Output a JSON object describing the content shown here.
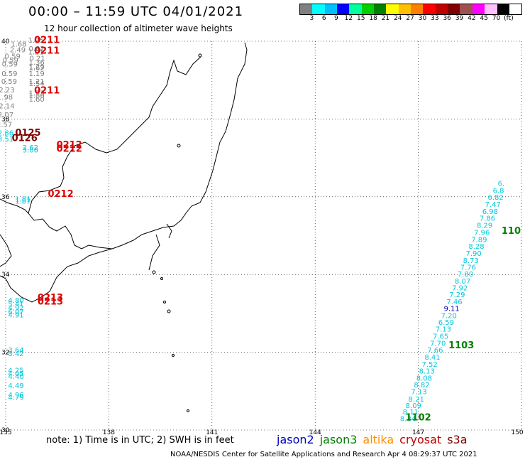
{
  "title": "00:00 – 11:59 UTC 04/01/2021",
  "subtitle": "12 hour collection of altimeter wave heights",
  "scale": {
    "colors": [
      "#808080",
      "#00ffff",
      "#00bfff",
      "#0000ff",
      "#00ffa0",
      "#00d000",
      "#008000",
      "#ffff00",
      "#ffc000",
      "#ff8000",
      "#ff0000",
      "#c00000",
      "#800000",
      "#a05050",
      "#ff00ff",
      "#ffc0ff",
      "#000000",
      "#ffffff"
    ],
    "labels": [
      "3",
      "6",
      "9",
      "12",
      "15",
      "18",
      "21",
      "24",
      "27",
      "30",
      "33",
      "36",
      "39",
      "42",
      "45",
      "70",
      "(ft)"
    ]
  },
  "chart_data": {
    "type": "scatter",
    "title": "00:00 – 11:59 UTC 04/01/2021",
    "subtitle": "12 hour collection of altimeter wave heights",
    "xlim": [
      135,
      150
    ],
    "ylim": [
      30,
      40
    ],
    "x_ticks": [
      "135",
      "138",
      "141",
      "144",
      "147",
      "150"
    ],
    "y_ticks": [
      "30",
      "32",
      "34",
      "36",
      "38",
      "40"
    ],
    "grid": true,
    "series": [
      {
        "name": "jason3 pass 1103",
        "color": "#00c8dc",
        "labels": [
          "8.34",
          "8.11",
          "8.09",
          "8.21",
          "7.13",
          "8.82",
          "8.08",
          "8.13",
          "7.52",
          "8.41",
          "7.66",
          "7.70",
          "7.65",
          "7.13",
          "6.59",
          "7.20",
          "9.11",
          "7.46",
          "7.29",
          "7.92",
          "8.07",
          "7.80",
          "7.76",
          "8.73",
          "7.90",
          "8.28",
          "7.89",
          "7.96",
          "8.29",
          "7.86",
          "6.98",
          "7.47",
          "6.82",
          "6.8",
          "6."
        ],
        "x": [
          146.7,
          146.78,
          146.86,
          146.94,
          147.02,
          147.1,
          147.17,
          147.25,
          147.33,
          147.41,
          147.49,
          147.57,
          147.65,
          147.73,
          147.81,
          147.89,
          147.97,
          148.05,
          148.13,
          148.21,
          148.29,
          148.37,
          148.45,
          148.53,
          148.61,
          148.69,
          148.77,
          148.85,
          148.93,
          149.01,
          149.09,
          149.17,
          149.25,
          149.33,
          149.41
        ],
        "y": [
          30.23,
          30.4,
          30.57,
          30.73,
          30.92,
          31.1,
          31.27,
          31.45,
          31.63,
          31.81,
          31.99,
          32.17,
          32.35,
          32.53,
          32.71,
          32.88,
          33.06,
          33.24,
          33.42,
          33.59,
          33.77,
          33.95,
          34.12,
          34.3,
          34.48,
          34.66,
          34.84,
          35.02,
          35.2,
          35.38,
          35.56,
          35.74,
          35.92,
          36.1,
          36.28
        ]
      },
      {
        "name": "cryosat west",
        "color": "#808080",
        "labels": [
          "1.25",
          "1.68",
          "2.49",
          "0.82",
          "1.21",
          "0.59",
          "0.21",
          "0.59",
          "1.36",
          "0.59",
          "1.29",
          "1.62",
          "0.59",
          "1.19",
          "0.59",
          "1.21",
          "1.54",
          "2.23",
          "1.73",
          "1.86",
          "1.98",
          "1.60",
          "2.14",
          "2.07",
          "2.57"
        ],
        "x": [
          135.88,
          135.38,
          135.35,
          135.9,
          135.88,
          135.2,
          135.92,
          135.14,
          135.9,
          135.12,
          135.9,
          135.9,
          135.11,
          135.9,
          135.1,
          135.9,
          135.9,
          135.03,
          135.9,
          135.9,
          134.98,
          135.9,
          135.03,
          135.0,
          134.96
        ],
        "y": [
          39.96,
          39.86,
          39.72,
          39.74,
          39.66,
          39.55,
          39.5,
          39.45,
          39.4,
          39.35,
          39.28,
          39.25,
          39.1,
          39.1,
          38.9,
          38.9,
          38.85,
          38.68,
          38.6,
          38.55,
          38.5,
          38.45,
          38.27,
          38.04,
          37.8
        ]
      },
      {
        "name": "jason3 west",
        "color": "#00c8dc",
        "labels": [
          "2.86",
          "3.51",
          "2.62",
          "3.00",
          "1.81",
          "1.87",
          "4.80",
          "5.41",
          "4.92",
          "6.07",
          "4.91",
          "3.64",
          "3.42",
          "4.25",
          "4.05",
          "4.40",
          "4.49",
          "4.96",
          "4.79"
        ],
        "x": [
          135.0,
          135.0,
          135.72,
          135.72,
          135.5,
          135.5,
          135.3,
          135.3,
          135.3,
          135.3,
          135.3,
          135.3,
          135.3,
          135.3,
          135.3,
          135.3,
          135.3,
          135.3,
          135.3
        ],
        "y": [
          37.58,
          37.42,
          37.2,
          37.14,
          35.88,
          35.82,
          33.27,
          33.18,
          33.08,
          32.98,
          32.9,
          31.99,
          31.9,
          31.47,
          31.39,
          31.32,
          31.08,
          30.84,
          30.78
        ]
      },
      {
        "name": "time labels red",
        "color": "#dd0000",
        "labels": [
          "0211",
          "0211",
          "0211",
          "0212",
          "0212",
          "0212",
          "0213",
          "0213"
        ],
        "x": [
          136.2,
          136.2,
          136.2,
          136.85,
          136.85,
          136.6,
          136.3,
          136.3
        ],
        "y": [
          39.95,
          39.68,
          38.66,
          37.26,
          37.16,
          36.0,
          33.33,
          33.23
        ]
      },
      {
        "name": "time labels dark red",
        "color": "#800000",
        "labels": [
          "0125",
          "0126"
        ],
        "x": [
          135.65,
          135.55
        ],
        "y": [
          37.57,
          37.43
        ]
      },
      {
        "name": "time labels green",
        "color": "#008000",
        "labels": [
          "1103",
          "1102",
          "110"
        ],
        "x": [
          148.25,
          147.0,
          149.7
        ],
        "y": [
          32.1,
          30.25,
          35.05
        ]
      }
    ]
  },
  "axes": {
    "x_ticks": [
      "135",
      "138",
      "141",
      "144",
      "147",
      "150"
    ],
    "y_ticks": [
      "30",
      "32",
      "34",
      "36",
      "38",
      "40"
    ]
  },
  "note": "note: 1) Time is in UTC; 2) SWH is in feet",
  "legend": [
    {
      "label": "jason2",
      "color": "#0000c0"
    },
    {
      "label": "jason3",
      "color": "#008000"
    },
    {
      "label": "altika",
      "color": "#ff8c00"
    },
    {
      "label": "cryosat",
      "color": "#c00000"
    },
    {
      "label": "s3a",
      "color": "#800000"
    }
  ],
  "footer": "NOAA/NESDIS Center for Satellite Applications and Research    Apr  4 08:29:37 UTC 2021"
}
